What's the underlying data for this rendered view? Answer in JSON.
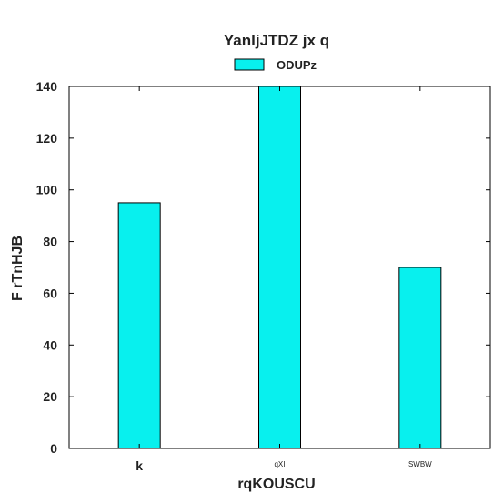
{
  "chart_data": {
    "type": "bar",
    "title": "YanljJTDZ jx q",
    "xlabel": "rqKOUSCU",
    "ylabel": "F rTnHJB",
    "categories": [
      "k",
      "qXI",
      "SWBW"
    ],
    "series": [
      {
        "name": "ODUPz",
        "values": [
          95,
          140,
          70
        ]
      }
    ],
    "ylim": [
      0,
      140
    ],
    "yticks": [
      0,
      20,
      40,
      60,
      80,
      100,
      120,
      140
    ],
    "grid": false,
    "legend": "top-center",
    "colors": {
      "bar": "#08f0ee",
      "edge": "#000000",
      "axis": "#000000"
    }
  }
}
